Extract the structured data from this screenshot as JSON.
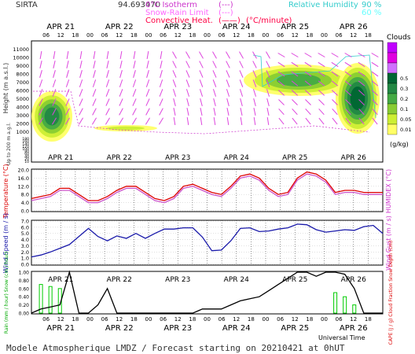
{
  "header": {
    "station": "SIRTA",
    "coords": "94.693470",
    "legend_isotherm": "0°C Isotherm",
    "legend_isotherm_line": "(---)",
    "legend_snowrain": "Snow-Rain Limit",
    "legend_snowrain_line": "(---)",
    "legend_convective": "Convective Heat.",
    "legend_convective_line": "(——)",
    "legend_convective_unit": "(°C/minute)",
    "rh_label": "Relative Humidity",
    "rh_90": "90 %",
    "rh_60": "60 %",
    "colors": {
      "isotherm": "#cc33cc",
      "snowrain": "#ff66ff",
      "convective": "#ff0044",
      "rh90": "#33cccc",
      "rh60": "#66ffff"
    }
  },
  "days": [
    "APR 21",
    "APR 22",
    "APR 23",
    "APR 24",
    "APR 25",
    "APR 26"
  ],
  "hours": [
    "06",
    "12",
    "18",
    "00"
  ],
  "footer": {
    "title": "Modele Atmospherique LMDZ / Forecast starting on 20210421 at 0hUT",
    "axis_caption": "Universal Time"
  },
  "chart_data": [
    {
      "type": "heatmap",
      "id": "clouds",
      "ylabel_main": "Height  (m a.s.l.)",
      "ylabel_low": "Up to 200 m a.g.l.",
      "yticks_main": [
        "11000",
        "10000",
        "9000",
        "8000",
        "7000",
        "6000",
        "5000",
        "4000",
        "3000",
        "2000",
        "1000"
      ],
      "yticks_low": [
        "180",
        "160",
        "140",
        "120",
        "100",
        "80",
        "60",
        "40",
        "20",
        "10"
      ],
      "colorbar_title": "Clouds",
      "colorbar_unit": "(g/kg)",
      "colorbar_levels": [
        "0.5",
        "0.3",
        "0.2",
        "0.1",
        "0.05",
        "0.01"
      ],
      "colorbar_colors": [
        "#c000ff",
        "#e000e0",
        "#d070ff",
        "#006633",
        "#228844",
        "#44aa44",
        "#88cc33",
        "#ccee33",
        "#ffff66"
      ]
    },
    {
      "type": "line",
      "id": "temperature",
      "ylabel": "Temperature (°C)",
      "ylabel_right": "HUMIDEX (°C)",
      "yticks": [
        "20.0",
        "16.0",
        "12.0",
        "8.0",
        "4.0",
        "0.0"
      ],
      "ylim": [
        0,
        20
      ],
      "series": [
        {
          "name": "Temperature",
          "color": "#dd0000",
          "values": [
            6,
            7,
            8,
            11,
            11,
            8,
            5,
            5,
            7,
            10,
            12,
            12,
            9,
            6,
            5,
            7,
            12,
            13,
            11,
            9,
            8,
            12,
            17,
            18,
            16,
            11,
            8,
            9,
            16,
            19,
            18,
            15,
            9,
            10,
            10,
            9,
            9,
            9
          ]
        },
        {
          "name": "Humidex",
          "color": "#cc55cc",
          "values": [
            5,
            6,
            7,
            10,
            10,
            7,
            4,
            4,
            6,
            9,
            11,
            11,
            8,
            5,
            4,
            6,
            11,
            12,
            10,
            8,
            7,
            11,
            16,
            17,
            15,
            10,
            7,
            8,
            15,
            18,
            17,
            14,
            8,
            9,
            9,
            8,
            8,
            8
          ]
        }
      ]
    },
    {
      "type": "line",
      "id": "wind",
      "ylabel": "Wind Speed (m / s)",
      "ylabel_right": "Wind Gust (m / s)",
      "yticks": [
        "7.0",
        "6.0",
        "5.0",
        "4.0",
        "3.0",
        "2.0",
        "1.0",
        "0.0"
      ],
      "ylim": [
        0,
        7
      ],
      "series": [
        {
          "name": "Wind Speed",
          "color": "#1a1aaa",
          "values": [
            1.2,
            1.5,
            2,
            2.6,
            3.2,
            4.5,
            5.8,
            4.5,
            3.8,
            4.6,
            4.2,
            5,
            4.2,
            5,
            5.7,
            5.7,
            5.9,
            5.9,
            4.4,
            2.2,
            2.3,
            3.8,
            5.8,
            5.9,
            5.3,
            5.4,
            5.7,
            5.9,
            6.5,
            6.4,
            5.6,
            5.2,
            5.4,
            5.6,
            5.5,
            6.1,
            6.3,
            5.0
          ]
        }
      ]
    },
    {
      "type": "bar",
      "id": "precip",
      "ylabel_left": "Rain (mm / hour) Snow (cm / hour)",
      "ylabel_right": "CAPE (J / g) Cloud Fraction Snow Depth (cm)",
      "yticks": [
        "1.00",
        "0.80",
        "0.60",
        "0.40",
        "0.20",
        "0.00"
      ],
      "ylim": [
        0,
        1
      ],
      "series": [
        {
          "name": "Rain",
          "color": "#00cc00",
          "values": [
            0,
            0.7,
            0.65,
            0.6,
            0,
            0,
            0,
            0,
            0,
            0,
            0,
            0,
            0,
            0,
            0,
            0,
            0,
            0,
            0,
            0,
            0,
            0,
            0,
            0,
            0,
            0,
            0,
            0,
            0,
            0,
            0,
            0,
            0.5,
            0.4,
            0.2,
            0,
            0,
            0
          ]
        },
        {
          "name": "Cloud Fraction",
          "color": "#000000",
          "values": [
            0,
            0.1,
            0.15,
            0.2,
            1,
            0,
            0,
            0.2,
            0.6,
            0,
            0,
            0,
            0,
            0,
            0,
            0,
            0,
            0,
            0.1,
            0.1,
            0.1,
            0.2,
            0.3,
            0.35,
            0.4,
            0.55,
            0.7,
            0.85,
            1,
            1,
            0.9,
            1,
            1,
            0.95,
            0.6,
            0,
            0,
            0
          ]
        }
      ]
    }
  ]
}
